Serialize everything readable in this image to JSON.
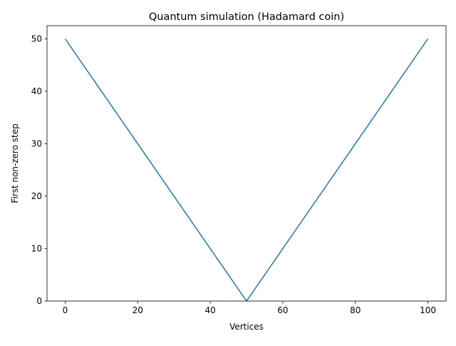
{
  "chart_data": {
    "type": "line",
    "title": "Quantum simulation (Hadamard coin)",
    "xlabel": "Vertices",
    "ylabel": "First non-zero step",
    "xlim": [
      -5,
      105
    ],
    "ylim": [
      0,
      52.5
    ],
    "xticks": [
      0,
      20,
      40,
      60,
      80,
      100
    ],
    "yticks": [
      0,
      10,
      20,
      30,
      40,
      50
    ],
    "grid": false,
    "series": [
      {
        "color": "#1f77b4",
        "x": [
          0,
          50,
          100
        ],
        "y": [
          50,
          0,
          50
        ]
      }
    ]
  }
}
